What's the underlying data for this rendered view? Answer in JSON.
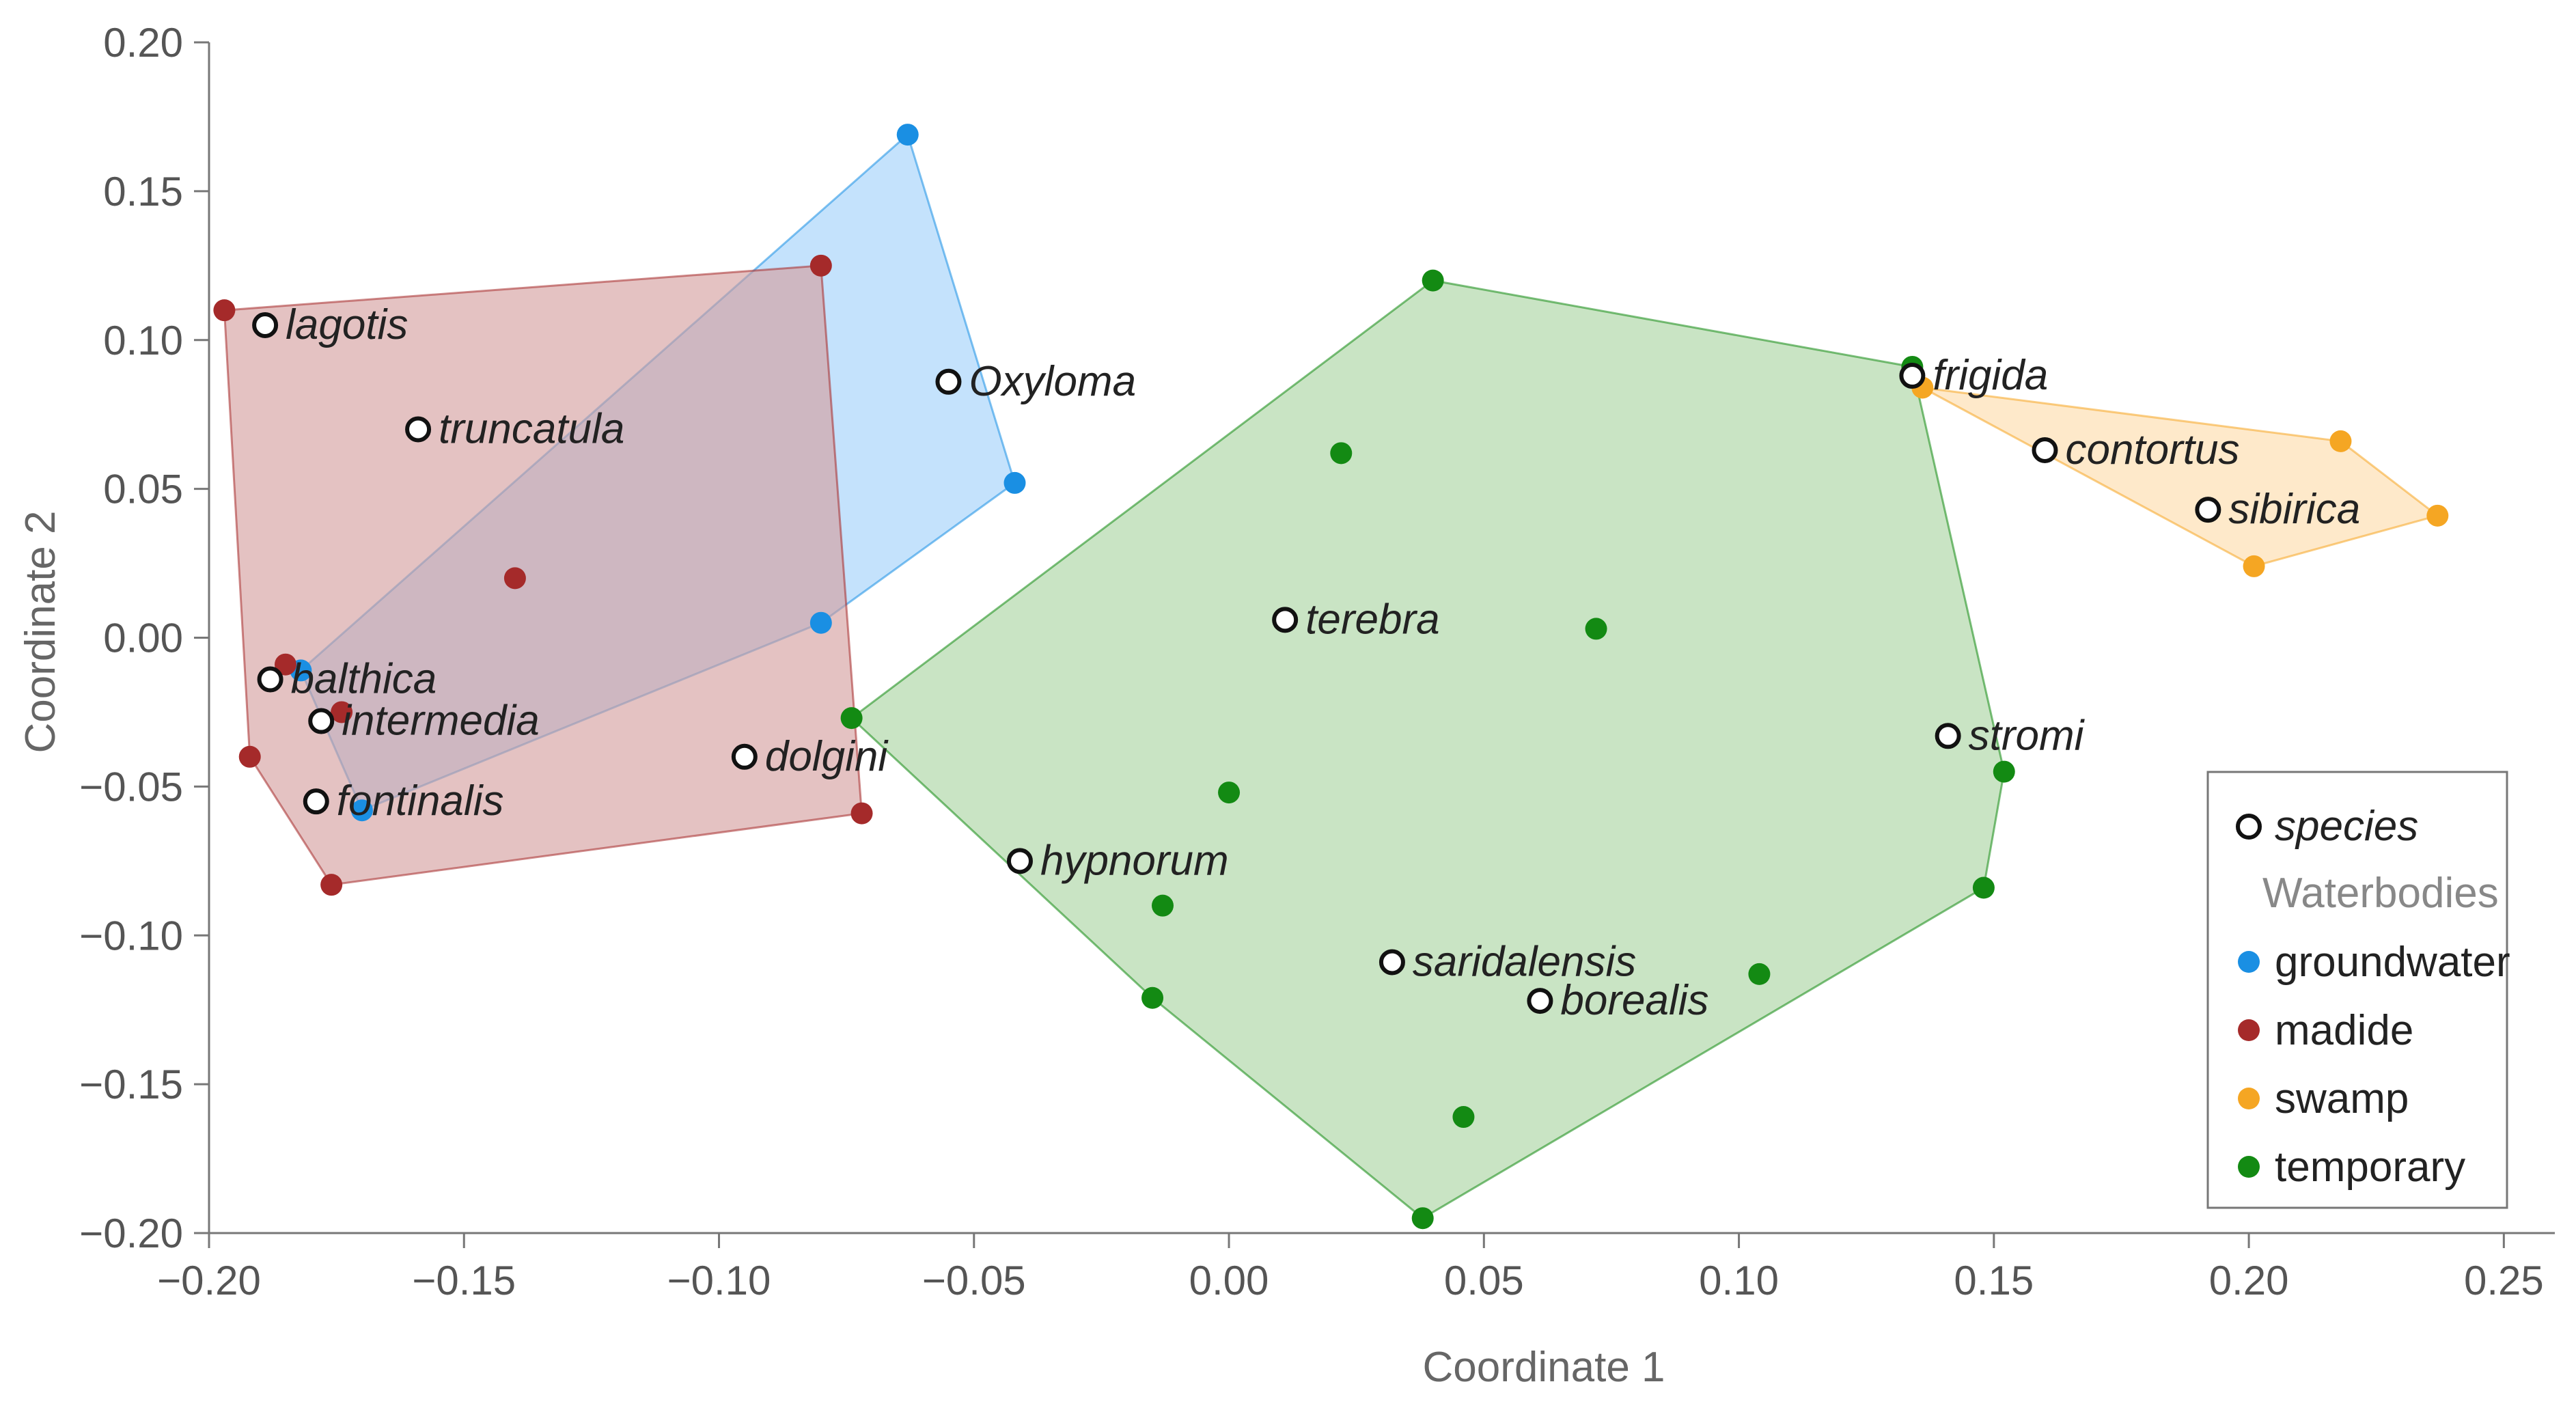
{
  "chart_data": {
    "type": "scatter",
    "xlabel": "Coordinate 1",
    "ylabel": "Coordinate 2",
    "xlim": [
      -0.2,
      0.26
    ],
    "ylim": [
      -0.2,
      0.2
    ],
    "xticks": [
      -0.2,
      -0.15,
      -0.1,
      -0.05,
      0.0,
      0.05,
      0.1,
      0.15,
      0.2,
      0.25
    ],
    "xtick_labels": [
      "−0.20",
      "−0.15",
      "−0.10",
      "−0.05",
      "0.00",
      "0.05",
      "0.10",
      "0.15",
      "0.20",
      "0.25"
    ],
    "yticks": [
      -0.2,
      -0.15,
      -0.1,
      -0.05,
      0.0,
      0.05,
      0.1,
      0.15,
      0.2
    ],
    "ytick_labels": [
      "−0.20",
      "−0.15",
      "−0.10",
      "−0.05",
      "0.00",
      "0.05",
      "0.10",
      "0.15",
      "0.20"
    ],
    "grid": false,
    "legend_position": "bottom-right",
    "legend": {
      "species_label": "species",
      "title": "Waterbodies",
      "entries": [
        "groundwater",
        "madide",
        "swamp",
        "temporary"
      ]
    },
    "series": [
      {
        "name": "groundwater",
        "color": "#1a8fe3",
        "fill": "#9fd0fa",
        "points": [
          [
            -0.063,
            0.169
          ],
          [
            -0.042,
            0.052
          ],
          [
            -0.08,
            0.005
          ],
          [
            -0.17,
            -0.058
          ],
          [
            -0.182,
            -0.011
          ]
        ]
      },
      {
        "name": "madide",
        "color": "#a52a2a",
        "fill": "#d39c9c",
        "points": [
          [
            -0.197,
            0.11
          ],
          [
            -0.08,
            0.125
          ],
          [
            -0.14,
            0.02
          ],
          [
            -0.185,
            -0.009
          ],
          [
            -0.174,
            -0.025
          ],
          [
            -0.192,
            -0.04
          ],
          [
            -0.176,
            -0.083
          ],
          [
            -0.072,
            -0.059
          ]
        ]
      },
      {
        "name": "swamp",
        "color": "#f5a623",
        "fill": "#fddcaa",
        "points": [
          [
            0.136,
            0.084
          ],
          [
            0.218,
            0.066
          ],
          [
            0.237,
            0.041
          ],
          [
            0.201,
            0.024
          ]
        ]
      },
      {
        "name": "temporary",
        "color": "#138a13",
        "fill": "#a8d4a0",
        "points": [
          [
            0.04,
            0.12
          ],
          [
            0.134,
            0.091
          ],
          [
            0.022,
            0.062
          ],
          [
            0.072,
            0.003
          ],
          [
            -0.074,
            -0.027
          ],
          [
            0.0,
            -0.052
          ],
          [
            0.152,
            -0.045
          ],
          [
            0.148,
            -0.084
          ],
          [
            -0.013,
            -0.09
          ],
          [
            -0.015,
            -0.121
          ],
          [
            0.104,
            -0.113
          ],
          [
            0.046,
            -0.161
          ],
          [
            0.038,
            -0.195
          ]
        ]
      }
    ],
    "species": [
      {
        "label": "lagotis",
        "x": -0.189,
        "y": 0.105
      },
      {
        "label": "truncatula",
        "x": -0.159,
        "y": 0.07
      },
      {
        "label": "Oxyloma",
        "x": -0.055,
        "y": 0.086
      },
      {
        "label": "balthica",
        "x": -0.188,
        "y": -0.014
      },
      {
        "label": "intermedia",
        "x": -0.178,
        "y": -0.028
      },
      {
        "label": "fontinalis",
        "x": -0.179,
        "y": -0.055
      },
      {
        "label": "dolgini",
        "x": -0.095,
        "y": -0.04
      },
      {
        "label": "hypnorum",
        "x": -0.041,
        "y": -0.075
      },
      {
        "label": "terebra",
        "x": 0.011,
        "y": 0.006
      },
      {
        "label": "saridalensis",
        "x": 0.032,
        "y": -0.109
      },
      {
        "label": "borealis",
        "x": 0.061,
        "y": -0.122
      },
      {
        "label": "frigida",
        "x": 0.134,
        "y": 0.088
      },
      {
        "label": "contortus",
        "x": 0.16,
        "y": 0.063
      },
      {
        "label": "sibirica",
        "x": 0.192,
        "y": 0.043
      },
      {
        "label": "stromi",
        "x": 0.141,
        "y": -0.033
      }
    ]
  }
}
